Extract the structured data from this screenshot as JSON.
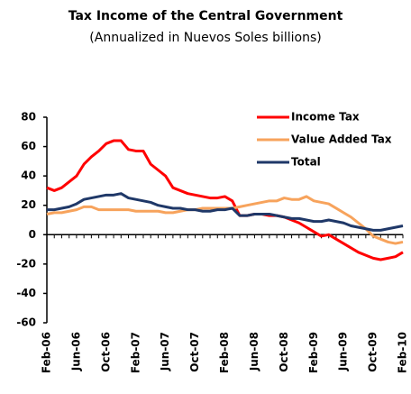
{
  "chart_data": {
    "type": "line",
    "title": "Tax Income of the Central Government",
    "subtitle": "(Annualized in Nuevos Soles billions)",
    "categories": [
      "Feb-06",
      null,
      null,
      null,
      "Jun-06",
      null,
      null,
      null,
      "Oct-06",
      null,
      null,
      null,
      "Feb-07",
      null,
      null,
      null,
      "Jun-07",
      null,
      null,
      null,
      "Oct-07",
      null,
      null,
      null,
      "Feb-08",
      null,
      null,
      null,
      "Jun-08",
      null,
      null,
      null,
      "Oct-08",
      null,
      null,
      null,
      "Feb-09",
      null,
      null,
      null,
      "Jun-09",
      null,
      null,
      null,
      "Oct-09",
      null,
      null,
      null,
      "Feb-10"
    ],
    "series": [
      {
        "name": "Income Tax",
        "color": "#ff0000",
        "values": [
          32,
          30,
          32,
          36,
          40,
          48,
          53,
          57,
          62,
          64,
          64,
          58,
          57,
          57,
          48,
          44,
          40,
          32,
          30,
          28,
          27,
          26,
          25,
          25,
          26,
          23,
          13,
          13,
          14,
          14,
          13,
          13,
          12,
          10,
          8,
          5,
          2,
          -1,
          0,
          -3,
          -6,
          -9,
          -12,
          -14,
          -16,
          -17,
          -16,
          -15,
          -12
        ]
      },
      {
        "name": "Value Added Tax",
        "color": "#f7a35c",
        "values": [
          14,
          15,
          15,
          16,
          17,
          19,
          19,
          17,
          17,
          17,
          17,
          17,
          16,
          16,
          16,
          16,
          15,
          15,
          16,
          17,
          17,
          18,
          18,
          18,
          18,
          18,
          19,
          20,
          21,
          22,
          23,
          23,
          25,
          24,
          24,
          26,
          23,
          22,
          21,
          18,
          15,
          12,
          8,
          4,
          -1,
          -3,
          -5,
          -6,
          -5
        ]
      },
      {
        "name": "Total",
        "color": "#1f3868",
        "values": [
          17,
          17,
          18,
          19,
          21,
          24,
          25,
          26,
          27,
          27,
          28,
          25,
          24,
          23,
          22,
          20,
          19,
          18,
          18,
          17,
          17,
          16,
          16,
          17,
          17,
          18,
          13,
          13,
          14,
          14,
          14,
          13,
          12,
          11,
          11,
          10,
          9,
          9,
          10,
          9,
          8,
          6,
          5,
          4,
          3,
          3,
          4,
          5,
          6
        ]
      }
    ],
    "ylim": [
      -60,
      80
    ],
    "yticks": [
      -60,
      -40,
      -20,
      0,
      20,
      40,
      60,
      80
    ],
    "grid": false,
    "legend": "upper right"
  }
}
